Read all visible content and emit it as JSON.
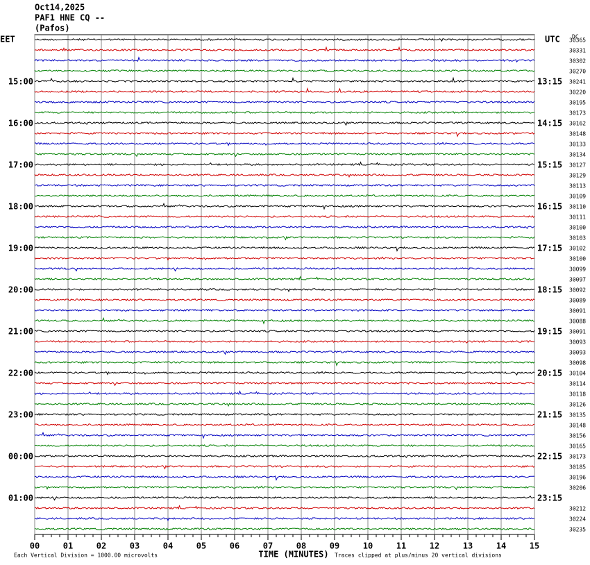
{
  "chart_data": {
    "type": "helicorder",
    "title_lines": [
      "Oct14,2025",
      "PAF1 HNE CQ --",
      "(Pafos)"
    ],
    "left_header": "EET",
    "right_header": "UTC",
    "dc_label": "DC",
    "colors": [
      "#000000",
      "#d00000",
      "#0000c0",
      "#008000"
    ],
    "left_labels": [
      null,
      null,
      null,
      null,
      "15:00",
      null,
      null,
      null,
      "16:00",
      null,
      null,
      null,
      "17:00",
      null,
      null,
      null,
      "18:00",
      null,
      null,
      null,
      "19:00",
      null,
      null,
      null,
      "20:00",
      null,
      null,
      null,
      "21:00",
      null,
      null,
      null,
      "22:00",
      null,
      null,
      null,
      "23:00",
      null,
      null,
      null,
      "00:00",
      null,
      null,
      null,
      "01:00",
      null,
      null,
      null
    ],
    "right_labels": [
      null,
      null,
      null,
      null,
      "13:15",
      null,
      null,
      null,
      "14:15",
      null,
      null,
      null,
      "15:15",
      null,
      null,
      null,
      "16:15",
      null,
      null,
      null,
      "17:15",
      null,
      null,
      null,
      "18:15",
      null,
      null,
      null,
      "19:15",
      null,
      null,
      null,
      "20:15",
      null,
      null,
      null,
      "21:15",
      null,
      null,
      null,
      "22:15",
      null,
      null,
      null,
      "23:15",
      null,
      null,
      null
    ],
    "row_values": [
      30365,
      30331,
      30302,
      30270,
      30241,
      30220,
      30195,
      30173,
      30162,
      30148,
      30133,
      30134,
      30127,
      30129,
      30113,
      30109,
      30110,
      30111,
      30100,
      30103,
      30102,
      30100,
      30099,
      30097,
      30092,
      30089,
      30091,
      30088,
      30091,
      30093,
      30093,
      30098,
      30104,
      30114,
      30118,
      30126,
      30135,
      30148,
      30156,
      30165,
      30173,
      30185,
      30196,
      30206,
      null,
      30212,
      30224,
      30235
    ],
    "xlabel": "TIME (MINUTES)",
    "xlim": [
      0,
      15
    ],
    "xticks": [
      {
        "value": 0,
        "label": "00"
      },
      {
        "value": 1,
        "label": "01"
      },
      {
        "value": 2,
        "label": "02"
      },
      {
        "value": 3,
        "label": "03"
      },
      {
        "value": 4,
        "label": "04"
      },
      {
        "value": 5,
        "label": "05"
      },
      {
        "value": 6,
        "label": "06"
      },
      {
        "value": 7,
        "label": "07"
      },
      {
        "value": 8,
        "label": "08"
      },
      {
        "value": 9,
        "label": "09"
      },
      10,
      11,
      12,
      13,
      14,
      15
    ],
    "grid": true,
    "footnote_left": "Each Vertical Division = 1000.00 microvolts",
    "footnote_right": "Traces clipped at plus/minus 20 vertical divisions"
  }
}
